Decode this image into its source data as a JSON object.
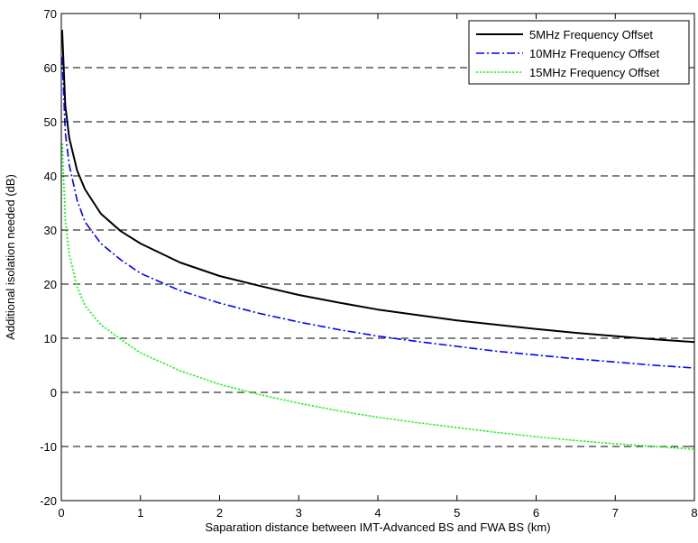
{
  "chart_data": {
    "type": "line",
    "xlabel": "Saparation distance between IMT-Advanced BS and FWA BS (km)",
    "ylabel": "Additional isolation needed (dB)",
    "xlim": [
      0,
      8
    ],
    "ylim": [
      -20,
      70
    ],
    "x_ticks": [
      0,
      1,
      2,
      3,
      4,
      5,
      6,
      7,
      8
    ],
    "y_ticks": [
      -20,
      -10,
      0,
      10,
      20,
      30,
      40,
      50,
      60,
      70
    ],
    "grid": "horizontal dashed",
    "legend_position": "top-right",
    "series": [
      {
        "name": "5MHz Frequency Offset",
        "color": "#000000",
        "style": "solid",
        "x": [
          0.01,
          0.05,
          0.1,
          0.2,
          0.3,
          0.5,
          0.75,
          1,
          1.5,
          2,
          2.5,
          3,
          3.5,
          4,
          4.5,
          5,
          5.5,
          6,
          6.5,
          7,
          7.5,
          8
        ],
        "y": [
          67.0,
          53.0,
          47.0,
          41.0,
          37.5,
          33.0,
          29.8,
          27.5,
          24.0,
          21.5,
          19.7,
          18.0,
          16.6,
          15.3,
          14.3,
          13.3,
          12.5,
          11.7,
          11.0,
          10.4,
          9.8,
          9.3
        ]
      },
      {
        "name": "10MHz Frequency Offset",
        "color": "#0000FF",
        "style": "dash-dot",
        "x": [
          0.01,
          0.05,
          0.1,
          0.2,
          0.3,
          0.5,
          0.75,
          1,
          1.5,
          2,
          2.5,
          3,
          3.5,
          4,
          4.5,
          5,
          5.5,
          6,
          6.5,
          7,
          7.5,
          8
        ],
        "y": [
          62.0,
          48.0,
          42.0,
          35.5,
          31.5,
          27.5,
          24.5,
          22.0,
          18.8,
          16.5,
          14.6,
          13.0,
          11.6,
          10.4,
          9.4,
          8.5,
          7.6,
          6.9,
          6.2,
          5.6,
          5.0,
          4.5
        ]
      },
      {
        "name": "15MHz Frequency Offset",
        "color": "#00FF00",
        "style": "dotted",
        "x": [
          0.01,
          0.05,
          0.1,
          0.2,
          0.3,
          0.5,
          0.75,
          1,
          1.5,
          2,
          2.5,
          3,
          3.5,
          4,
          4.5,
          5,
          5.5,
          6,
          6.5,
          7,
          7.5,
          8
        ],
        "y": [
          46.0,
          32.0,
          25.5,
          19.5,
          16.0,
          12.5,
          9.8,
          7.3,
          4.0,
          1.5,
          -0.4,
          -2.0,
          -3.4,
          -4.6,
          -5.6,
          -6.5,
          -7.4,
          -8.2,
          -8.9,
          -9.5,
          -10.0,
          -10.5
        ]
      }
    ]
  }
}
